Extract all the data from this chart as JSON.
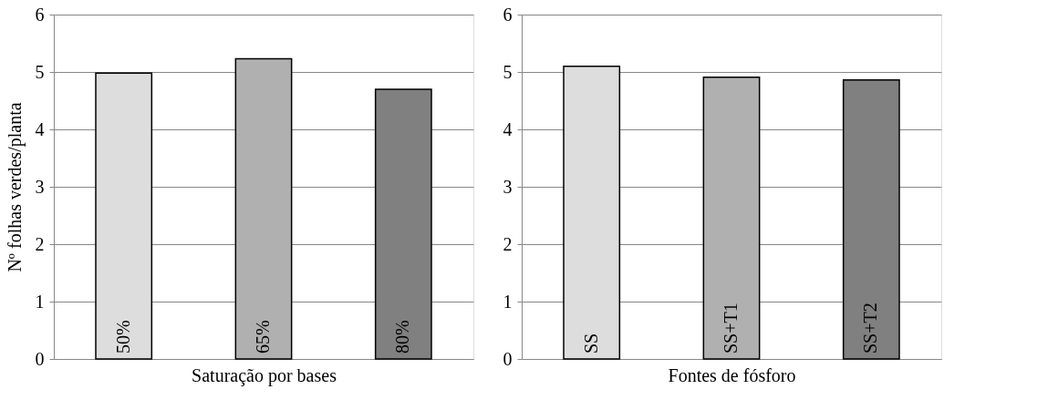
{
  "chart_data": [
    {
      "type": "bar",
      "xlabel": "Saturação por bases",
      "ylabel": "Nº folhas verdes/planta",
      "categories": [
        "50%",
        "65%",
        "80%"
      ],
      "values": [
        4.98,
        5.23,
        4.7
      ],
      "colors": [
        "#dddddd",
        "#b0b0b0",
        "#808080"
      ],
      "ylim": [
        0,
        6
      ],
      "yticks": [
        0,
        1,
        2,
        3,
        4,
        5,
        6
      ],
      "grid": "y"
    },
    {
      "type": "bar",
      "xlabel": "Fontes de fósforo",
      "categories": [
        "SS",
        "SS+T1",
        "SS+T2"
      ],
      "values": [
        5.1,
        4.91,
        4.86
      ],
      "colors": [
        "#dddddd",
        "#b0b0b0",
        "#808080"
      ],
      "ylim": [
        0,
        6
      ],
      "yticks": [
        0,
        1,
        2,
        3,
        4,
        5,
        6
      ],
      "grid": "y"
    }
  ]
}
